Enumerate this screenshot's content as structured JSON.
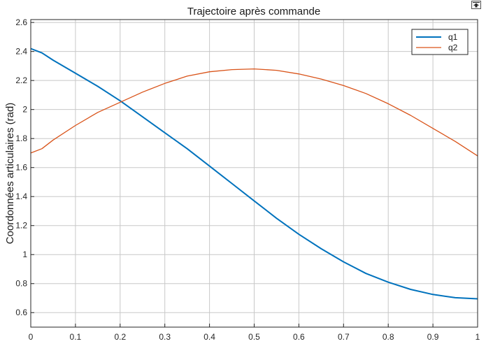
{
  "chart_data": {
    "type": "line",
    "title": "Trajectoire après commande",
    "xlabel": "",
    "ylabel": "Coordonnées articulaires (rad)",
    "xlim": [
      0,
      1
    ],
    "ylim": [
      0.5,
      2.62
    ],
    "xticks": [
      0,
      0.1,
      0.2,
      0.3,
      0.4,
      0.5,
      0.6,
      0.7,
      0.8,
      0.9,
      1
    ],
    "yticks": [
      0.6,
      0.8,
      1,
      1.2,
      1.4,
      1.6,
      1.8,
      2,
      2.2,
      2.4,
      2.6
    ],
    "xtick_labels": [
      "0",
      "0.1",
      "0.2",
      "0.3",
      "0.4",
      "0.5",
      "0.6",
      "0.7",
      "0.8",
      "0.9",
      "1"
    ],
    "ytick_labels": [
      "0.6",
      "0.8",
      "1",
      "1.2",
      "1.4",
      "1.6",
      "1.8",
      "2",
      "2.2",
      "2.4",
      "2.6"
    ],
    "grid": true,
    "legend_position": "top-right",
    "x": [
      0,
      0.025,
      0.05,
      0.1,
      0.15,
      0.2,
      0.25,
      0.3,
      0.35,
      0.4,
      0.45,
      0.5,
      0.55,
      0.6,
      0.65,
      0.7,
      0.75,
      0.8,
      0.85,
      0.9,
      0.95,
      1
    ],
    "series": [
      {
        "name": "q1",
        "color": "#0072BD",
        "values": [
          2.42,
          2.39,
          2.34,
          2.25,
          2.16,
          2.06,
          1.95,
          1.84,
          1.73,
          1.61,
          1.49,
          1.37,
          1.25,
          1.14,
          1.04,
          0.95,
          0.87,
          0.81,
          0.76,
          0.725,
          0.703,
          0.695
        ]
      },
      {
        "name": "q2",
        "color": "#D95319",
        "values": [
          1.7,
          1.73,
          1.79,
          1.89,
          1.98,
          2.05,
          2.12,
          2.18,
          2.23,
          2.26,
          2.275,
          2.28,
          2.27,
          2.245,
          2.21,
          2.165,
          2.11,
          2.04,
          1.96,
          1.87,
          1.78,
          1.68
        ]
      }
    ]
  },
  "toolbar": {
    "export_icon": "export-arrow-icon"
  }
}
